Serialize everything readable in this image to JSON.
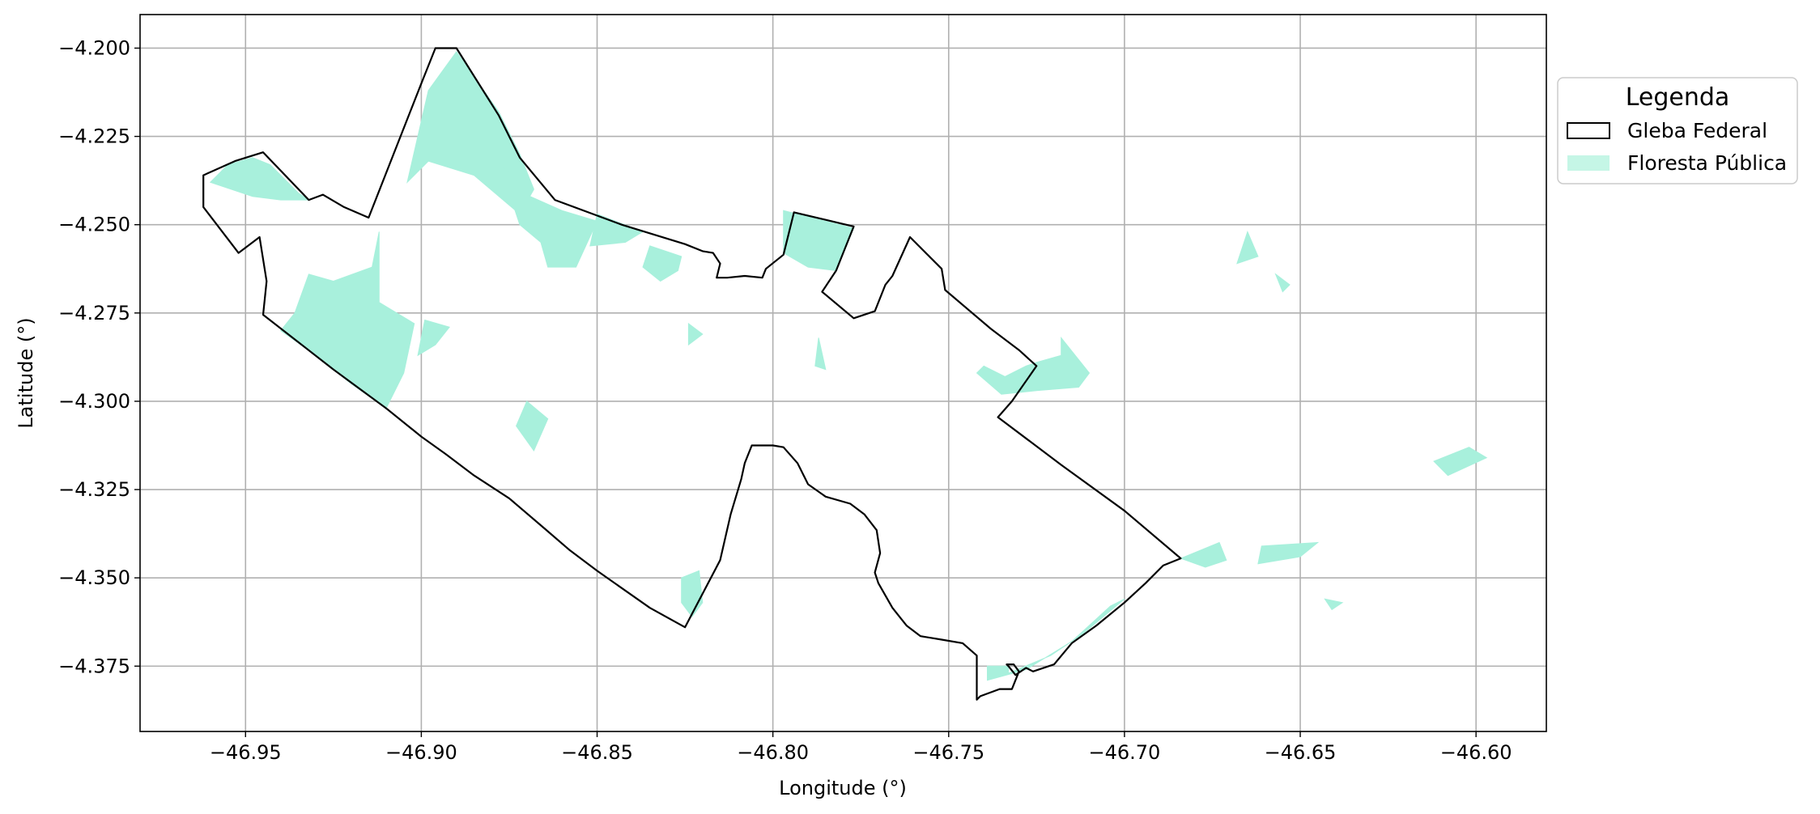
{
  "chart_data": {
    "type": "map",
    "xlabel": "Longitude (°)",
    "ylabel": "Latitude (°)",
    "xlim": [
      -46.98,
      -46.58
    ],
    "ylim": [
      -4.3935,
      -4.1905
    ],
    "grid": true,
    "x_ticks": [
      {
        "value": -46.95,
        "label": "−46.95"
      },
      {
        "value": -46.9,
        "label": "−46.90"
      },
      {
        "value": -46.85,
        "label": "−46.85"
      },
      {
        "value": -46.8,
        "label": "−46.80"
      },
      {
        "value": -46.75,
        "label": "−46.75"
      },
      {
        "value": -46.7,
        "label": "−46.70"
      },
      {
        "value": -46.65,
        "label": "−46.65"
      },
      {
        "value": -46.6,
        "label": "−46.60"
      }
    ],
    "y_ticks": [
      {
        "value": -4.2,
        "label": "−4.200"
      },
      {
        "value": -4.225,
        "label": "−4.225"
      },
      {
        "value": -4.25,
        "label": "−4.250"
      },
      {
        "value": -4.275,
        "label": "−4.275"
      },
      {
        "value": -4.3,
        "label": "−4.300"
      },
      {
        "value": -4.325,
        "label": "−4.325"
      },
      {
        "value": -4.35,
        "label": "−4.350"
      },
      {
        "value": -4.375,
        "label": "−4.375"
      }
    ],
    "legend": {
      "title": "Legenda",
      "placement": "outside-right-top",
      "entries": [
        {
          "label": "Gleba Federal",
          "kind": "outline",
          "edge_color": "#000000",
          "fill": "#ffffff"
        },
        {
          "label": "Floresta Pública",
          "kind": "patch",
          "fill": "#c5f6e6"
        }
      ]
    },
    "colors": {
      "forest": "#a8f0dc",
      "boundary": "#000000",
      "grid": "#b0b0b0"
    },
    "gleba_federal": [
      [
        -46.962,
        -4.236
      ],
      [
        -46.953,
        -4.232
      ],
      [
        -46.945,
        -4.2295
      ],
      [
        -46.932,
        -4.243
      ],
      [
        -46.928,
        -4.2415
      ],
      [
        -46.922,
        -4.245
      ],
      [
        -46.915,
        -4.248
      ],
      [
        -46.9,
        -4.21
      ],
      [
        -46.896,
        -4.2
      ],
      [
        -46.89,
        -4.2
      ],
      [
        -46.878,
        -4.219
      ],
      [
        -46.872,
        -4.231
      ],
      [
        -46.862,
        -4.243
      ],
      [
        -46.843,
        -4.25
      ],
      [
        -46.825,
        -4.2555
      ],
      [
        -46.82,
        -4.2575
      ],
      [
        -46.817,
        -4.258
      ],
      [
        -46.815,
        -4.261
      ],
      [
        -46.816,
        -4.265
      ],
      [
        -46.813,
        -4.265
      ],
      [
        -46.808,
        -4.2645
      ],
      [
        -46.803,
        -4.265
      ],
      [
        -46.802,
        -4.2625
      ],
      [
        -46.797,
        -4.2585
      ],
      [
        -46.794,
        -4.2465
      ],
      [
        -46.777,
        -4.2505
      ],
      [
        -46.782,
        -4.263
      ],
      [
        -46.786,
        -4.269
      ],
      [
        -46.777,
        -4.2765
      ],
      [
        -46.771,
        -4.2745
      ],
      [
        -46.768,
        -4.267
      ],
      [
        -46.766,
        -4.2645
      ],
      [
        -46.761,
        -4.2535
      ],
      [
        -46.752,
        -4.2625
      ],
      [
        -46.751,
        -4.2685
      ],
      [
        -46.738,
        -4.2795
      ],
      [
        -46.73,
        -4.2855
      ],
      [
        -46.725,
        -4.29
      ],
      [
        -46.732,
        -4.3
      ],
      [
        -46.736,
        -4.3045
      ],
      [
        -46.718,
        -4.318
      ],
      [
        -46.7,
        -4.331
      ],
      [
        -46.684,
        -4.3445
      ],
      [
        -46.689,
        -4.3465
      ],
      [
        -46.694,
        -4.3515
      ],
      [
        -46.7,
        -4.357
      ],
      [
        -46.708,
        -4.3635
      ],
      [
        -46.715,
        -4.3685
      ],
      [
        -46.72,
        -4.3745
      ],
      [
        -46.726,
        -4.3765
      ],
      [
        -46.728,
        -4.3755
      ],
      [
        -46.731,
        -4.3775
      ],
      [
        -46.733,
        -4.375
      ],
      [
        -46.7335,
        -4.3745
      ],
      [
        -46.7315,
        -4.3745
      ],
      [
        -46.73,
        -4.3765
      ],
      [
        -46.732,
        -4.3815
      ],
      [
        -46.7355,
        -4.3815
      ],
      [
        -46.741,
        -4.3835
      ],
      [
        -46.742,
        -4.3845
      ],
      [
        -46.742,
        -4.372
      ],
      [
        -46.746,
        -4.3685
      ],
      [
        -46.752,
        -4.3675
      ],
      [
        -46.758,
        -4.3665
      ],
      [
        -46.762,
        -4.3635
      ],
      [
        -46.766,
        -4.3585
      ],
      [
        -46.77,
        -4.3515
      ],
      [
        -46.771,
        -4.3485
      ],
      [
        -46.7695,
        -4.343
      ],
      [
        -46.7705,
        -4.3365
      ],
      [
        -46.774,
        -4.332
      ],
      [
        -46.778,
        -4.329
      ],
      [
        -46.785,
        -4.327
      ],
      [
        -46.79,
        -4.3235
      ],
      [
        -46.793,
        -4.3175
      ],
      [
        -46.797,
        -4.313
      ],
      [
        -46.8,
        -4.3125
      ],
      [
        -46.806,
        -4.3125
      ],
      [
        -46.808,
        -4.3175
      ],
      [
        -46.809,
        -4.322
      ],
      [
        -46.812,
        -4.332
      ],
      [
        -46.815,
        -4.345
      ],
      [
        -46.825,
        -4.364
      ],
      [
        -46.835,
        -4.3585
      ],
      [
        -46.85,
        -4.348
      ],
      [
        -46.858,
        -4.342
      ],
      [
        -46.865,
        -4.336
      ],
      [
        -46.875,
        -4.3275
      ],
      [
        -46.885,
        -4.321
      ],
      [
        -46.893,
        -4.315
      ],
      [
        -46.9,
        -4.31
      ],
      [
        -46.91,
        -4.302
      ],
      [
        -46.925,
        -4.291
      ],
      [
        -46.945,
        -4.2755
      ],
      [
        -46.944,
        -4.266
      ],
      [
        -46.946,
        -4.2535
      ],
      [
        -46.952,
        -4.258
      ],
      [
        -46.962,
        -4.245
      ]
    ],
    "floresta_publica": [
      [
        [
          -46.89,
          -4.201
        ],
        [
          -46.878,
          -4.218
        ],
        [
          -46.872,
          -4.23
        ],
        [
          -46.868,
          -4.24
        ],
        [
          -46.872,
          -4.247
        ],
        [
          -46.885,
          -4.236
        ],
        [
          -46.898,
          -4.232
        ],
        [
          -46.904,
          -4.238
        ],
        [
          -46.898,
          -4.212
        ]
      ],
      [
        [
          -46.878,
          -4.232
        ],
        [
          -46.869,
          -4.242
        ],
        [
          -46.86,
          -4.246
        ],
        [
          -46.85,
          -4.249
        ],
        [
          -46.856,
          -4.262
        ],
        [
          -46.864,
          -4.262
        ],
        [
          -46.866,
          -4.255
        ],
        [
          -46.872,
          -4.25
        ]
      ],
      [
        [
          -46.85,
          -4.247
        ],
        [
          -46.837,
          -4.252
        ],
        [
          -46.842,
          -4.255
        ],
        [
          -46.852,
          -4.256
        ]
      ],
      [
        [
          -46.835,
          -4.256
        ],
        [
          -46.826,
          -4.259
        ],
        [
          -46.827,
          -4.263
        ],
        [
          -46.832,
          -4.266
        ],
        [
          -46.837,
          -4.262
        ]
      ],
      [
        [
          -46.955,
          -4.233
        ],
        [
          -46.948,
          -4.231
        ],
        [
          -46.943,
          -4.233
        ],
        [
          -46.935,
          -4.241
        ],
        [
          -46.932,
          -4.243
        ],
        [
          -46.94,
          -4.243
        ],
        [
          -46.948,
          -4.242
        ],
        [
          -46.96,
          -4.238
        ]
      ],
      [
        [
          -46.912,
          -4.252
        ],
        [
          -46.914,
          -4.262
        ],
        [
          -46.925,
          -4.266
        ],
        [
          -46.932,
          -4.264
        ],
        [
          -46.936,
          -4.275
        ],
        [
          -46.94,
          -4.28
        ],
        [
          -46.93,
          -4.287
        ],
        [
          -46.92,
          -4.295
        ],
        [
          -46.91,
          -4.302
        ],
        [
          -46.905,
          -4.292
        ],
        [
          -46.902,
          -4.278
        ],
        [
          -46.912,
          -4.272
        ]
      ],
      [
        [
          -46.899,
          -4.277
        ],
        [
          -46.892,
          -4.279
        ],
        [
          -46.896,
          -4.284
        ],
        [
          -46.901,
          -4.287
        ]
      ],
      [
        [
          -46.797,
          -4.246
        ],
        [
          -46.777,
          -4.251
        ],
        [
          -46.782,
          -4.263
        ],
        [
          -46.79,
          -4.262
        ],
        [
          -46.797,
          -4.258
        ]
      ],
      [
        [
          -46.87,
          -4.3
        ],
        [
          -46.864,
          -4.305
        ],
        [
          -46.868,
          -4.314
        ],
        [
          -46.873,
          -4.307
        ]
      ],
      [
        [
          -46.824,
          -4.278
        ],
        [
          -46.82,
          -4.281
        ],
        [
          -46.824,
          -4.284
        ]
      ],
      [
        [
          -46.718,
          -4.282
        ],
        [
          -46.718,
          -4.287
        ],
        [
          -46.725,
          -4.289
        ],
        [
          -46.728,
          -4.29
        ],
        [
          -46.734,
          -4.293
        ],
        [
          -46.74,
          -4.29
        ],
        [
          -46.742,
          -4.292
        ],
        [
          -46.735,
          -4.298
        ],
        [
          -46.725,
          -4.297
        ],
        [
          -46.713,
          -4.296
        ],
        [
          -46.71,
          -4.292
        ]
      ],
      [
        [
          -46.821,
          -4.348
        ],
        [
          -46.826,
          -4.35
        ],
        [
          -46.826,
          -4.357
        ],
        [
          -46.823,
          -4.361
        ],
        [
          -46.82,
          -4.357
        ]
      ],
      [
        [
          -46.665,
          -4.252
        ],
        [
          -46.662,
          -4.259
        ],
        [
          -46.668,
          -4.261
        ]
      ],
      [
        [
          -46.657,
          -4.264
        ],
        [
          -46.653,
          -4.267
        ],
        [
          -46.655,
          -4.269
        ]
      ],
      [
        [
          -46.602,
          -4.313
        ],
        [
          -46.612,
          -4.317
        ],
        [
          -46.608,
          -4.321
        ],
        [
          -46.597,
          -4.316
        ]
      ],
      [
        [
          -46.673,
          -4.34
        ],
        [
          -46.684,
          -4.3445
        ],
        [
          -46.677,
          -4.347
        ],
        [
          -46.671,
          -4.345
        ]
      ],
      [
        [
          -46.661,
          -4.341
        ],
        [
          -46.645,
          -4.34
        ],
        [
          -46.65,
          -4.344
        ],
        [
          -46.662,
          -4.346
        ]
      ],
      [
        [
          -46.739,
          -4.375
        ],
        [
          -46.733,
          -4.375
        ],
        [
          -46.733,
          -4.377
        ],
        [
          -46.721,
          -4.372
        ],
        [
          -46.712,
          -4.366
        ],
        [
          -46.7,
          -4.356
        ],
        [
          -46.704,
          -4.358
        ],
        [
          -46.715,
          -4.368
        ],
        [
          -46.728,
          -4.376
        ],
        [
          -46.739,
          -4.379
        ]
      ],
      [
        [
          -46.643,
          -4.356
        ],
        [
          -46.638,
          -4.357
        ],
        [
          -46.641,
          -4.359
        ]
      ],
      [
        [
          -46.787,
          -4.282
        ],
        [
          -46.785,
          -4.291
        ],
        [
          -46.788,
          -4.29
        ]
      ]
    ]
  }
}
